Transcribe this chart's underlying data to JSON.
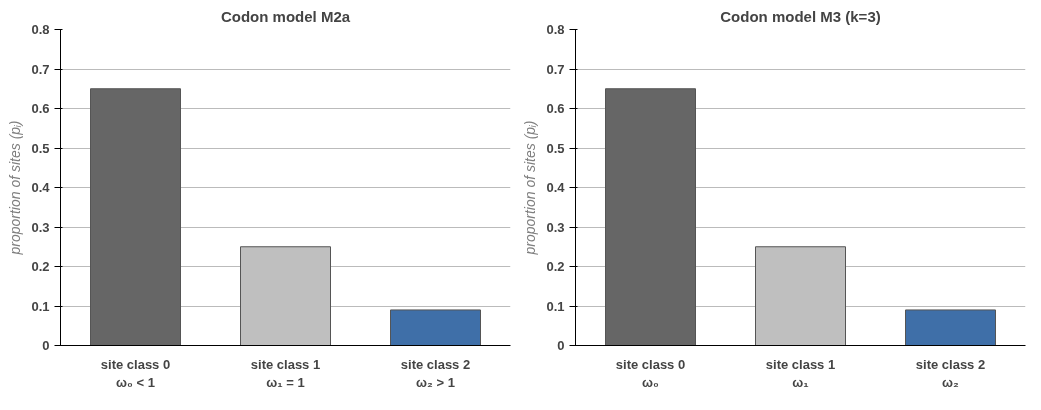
{
  "chart_data": [
    {
      "type": "bar",
      "title": "Codon model M2a",
      "ylabel": "proportion of sites (pᵢ)",
      "categories": [
        "site class 0\nω₀ < 1",
        "site class 1\nω₁ = 1",
        "site class 2\nω₂ > 1"
      ],
      "values": [
        0.65,
        0.25,
        0.09
      ],
      "colors": [
        "#666666",
        "#bfbfbf",
        "#3f6fa8"
      ],
      "ylim": [
        0,
        0.8
      ],
      "yticks": [
        0,
        0.1,
        0.2,
        0.3,
        0.4,
        0.5,
        0.6,
        0.7,
        0.8
      ],
      "grid": "y"
    },
    {
      "type": "bar",
      "title": "Codon model M3 (k=3)",
      "ylabel": "proportion of sites (pᵢ)",
      "categories": [
        "site class 0\nω₀",
        "site class 1\nω₁",
        "site class 2\nω₂"
      ],
      "values": [
        0.65,
        0.25,
        0.09
      ],
      "colors": [
        "#666666",
        "#bfbfbf",
        "#3f6fa8"
      ],
      "ylim": [
        0,
        0.8
      ],
      "yticks": [
        0,
        0.1,
        0.2,
        0.3,
        0.4,
        0.5,
        0.6,
        0.7,
        0.8
      ],
      "grid": "y"
    }
  ]
}
